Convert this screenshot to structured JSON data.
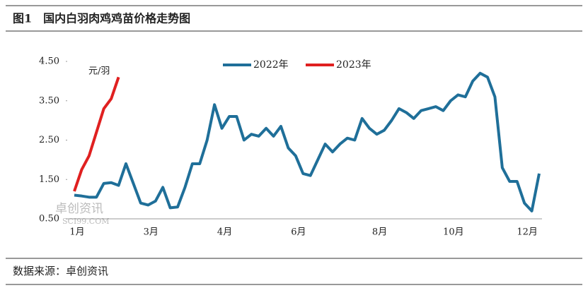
{
  "chart_data": {
    "type": "line",
    "title": "图1　国内白羽肉鸡鸡苗价格走势图",
    "y_unit": "元/羽",
    "source": "数据来源：卓创资讯",
    "watermark": [
      "卓创资讯",
      "SCI99.COM"
    ],
    "categories": [
      "1月",
      null,
      null,
      null,
      null,
      null,
      null,
      null,
      null,
      null,
      "3月",
      null,
      null,
      null,
      null,
      null,
      null,
      null,
      null,
      null,
      "4月",
      null,
      null,
      null,
      null,
      null,
      null,
      null,
      null,
      null,
      "6月",
      null,
      null,
      null,
      null,
      null,
      null,
      null,
      null,
      null,
      null,
      "8月",
      null,
      null,
      null,
      null,
      null,
      null,
      null,
      null,
      null,
      "10月",
      null,
      null,
      null,
      null,
      null,
      null,
      null,
      null,
      null,
      "12月",
      null,
      null
    ],
    "series": [
      {
        "name": "2022年",
        "color": "#1f6f99",
        "values": [
          1.1,
          1.08,
          1.05,
          1.05,
          1.4,
          1.42,
          1.35,
          1.9,
          1.4,
          0.9,
          0.85,
          0.95,
          1.3,
          0.78,
          0.8,
          1.3,
          1.9,
          1.9,
          2.5,
          3.4,
          2.8,
          3.1,
          3.1,
          2.5,
          2.65,
          2.6,
          2.8,
          2.6,
          2.85,
          2.3,
          2.1,
          1.65,
          1.6,
          2.0,
          2.4,
          2.2,
          2.4,
          2.55,
          2.5,
          3.05,
          2.8,
          2.65,
          2.75,
          3.0,
          3.3,
          3.2,
          3.05,
          3.25,
          3.3,
          3.35,
          3.25,
          3.5,
          3.65,
          3.6,
          4.0,
          4.2,
          4.1,
          3.6,
          1.8,
          1.45,
          1.45,
          0.9,
          0.7,
          1.65
        ]
      },
      {
        "name": "2023年",
        "color": "#e02020",
        "values": [
          1.2,
          1.75,
          2.1,
          2.7,
          3.3,
          3.55,
          4.1,
          null,
          null,
          null,
          null,
          null,
          null,
          null,
          null,
          null,
          null,
          null,
          null,
          null,
          null,
          null,
          null,
          null,
          null,
          null,
          null,
          null,
          null,
          null,
          null,
          null,
          null,
          null,
          null,
          null,
          null,
          null,
          null,
          null,
          null,
          null,
          null,
          null,
          null,
          null,
          null,
          null,
          null,
          null,
          null,
          null,
          null,
          null,
          null,
          null,
          null,
          null,
          null,
          null,
          null,
          null,
          null,
          null
        ]
      }
    ],
    "ylim": [
      0.5,
      4.5
    ],
    "yticks": [
      {
        "value": 0.5,
        "label": "0.50"
      },
      {
        "value": 1.5,
        "label": "1.50"
      },
      {
        "value": 2.5,
        "label": "2.50"
      },
      {
        "value": 3.5,
        "label": "3.50"
      },
      {
        "value": 4.5,
        "label": "4.50"
      }
    ],
    "grid": false,
    "legend": "top"
  }
}
